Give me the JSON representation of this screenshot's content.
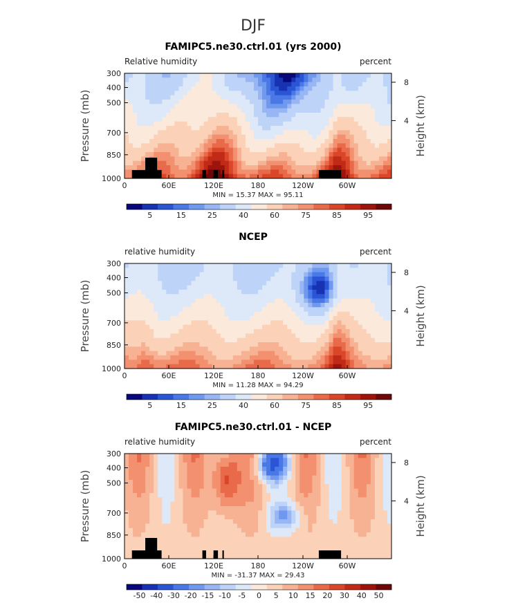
{
  "figure": {
    "title": "DJF"
  },
  "colors": {
    "rh_palette": [
      "#08087a",
      "#1832b4",
      "#2a56d6",
      "#4a78e6",
      "#6f98ef",
      "#98b6f4",
      "#bed3f8",
      "#dde8f8",
      "#fbe9dc",
      "#fbd2b8",
      "#f7b294",
      "#f2906f",
      "#e96a4a",
      "#da4628",
      "#c02a16",
      "#9c140c",
      "#6e0808"
    ],
    "diff_palette": [
      "#08087a",
      "#1832b4",
      "#2a56d6",
      "#4a78e6",
      "#6f98ef",
      "#98b6f4",
      "#bed3f8",
      "#dde8f8",
      "#fbe9dc",
      "#fbd2b8",
      "#f7b294",
      "#f2906f",
      "#e96a4a",
      "#da4628",
      "#c02a16",
      "#9c140c",
      "#6e0808"
    ],
    "topography": "#000000"
  },
  "chart_data": [
    {
      "type": "heatmap",
      "title": "FAMIPC5.ne30.ctrl.01 (yrs 2000)",
      "left_label": "Relative humidity",
      "right_label": "percent",
      "ylabel": "Pressure (mb)",
      "ylabel_right": "Height (km)",
      "x_ticks": [
        "0",
        "60E",
        "120E",
        "180",
        "120W",
        "60W"
      ],
      "y_ticks": [
        "300",
        "400",
        "500",
        "700",
        "850",
        "1000"
      ],
      "height_ticks": [
        "8",
        "4"
      ],
      "ylim": [
        1000,
        300
      ],
      "stats": "MIN =   15.37   MAX =   95.11",
      "min": 15.37,
      "max": 95.11,
      "colorbar_labels": [
        "5",
        "15",
        "25",
        "40",
        "60",
        "75",
        "85",
        "95"
      ]
    },
    {
      "type": "heatmap",
      "title": "NCEP",
      "left_label": "relative humidity",
      "right_label": "percent",
      "ylabel": "Pressure (mb)",
      "ylabel_right": "Height (km)",
      "x_ticks": [
        "0",
        "60E",
        "120E",
        "180",
        "120W",
        "60W"
      ],
      "y_ticks": [
        "300",
        "400",
        "500",
        "700",
        "850",
        "1000"
      ],
      "height_ticks": [
        "8",
        "4"
      ],
      "ylim": [
        1000,
        300
      ],
      "stats": "MIN =   11.28   MAX =   94.29",
      "min": 11.28,
      "max": 94.29,
      "colorbar_labels": [
        "5",
        "15",
        "25",
        "40",
        "60",
        "75",
        "85",
        "95"
      ]
    },
    {
      "type": "heatmap",
      "title": "FAMIPC5.ne30.ctrl.01 - NCEP",
      "left_label": "relative humidity",
      "right_label": "percent",
      "ylabel": "Pressure (mb)",
      "ylabel_right": "Height (km)",
      "x_ticks": [
        "0",
        "60E",
        "120E",
        "180",
        "120W",
        "60W"
      ],
      "y_ticks": [
        "300",
        "400",
        "500",
        "700",
        "850",
        "1000"
      ],
      "height_ticks": [
        "8",
        "4"
      ],
      "ylim": [
        1000,
        300
      ],
      "stats": "MIN = -31.37   MAX =   29.43",
      "min": -31.37,
      "max": 29.43,
      "colorbar_labels": [
        "-50",
        "-40",
        "-30",
        "-20",
        "-15",
        "-10",
        "-5",
        "0",
        "5",
        "10",
        "15",
        "20",
        "30",
        "40",
        "50"
      ]
    }
  ]
}
